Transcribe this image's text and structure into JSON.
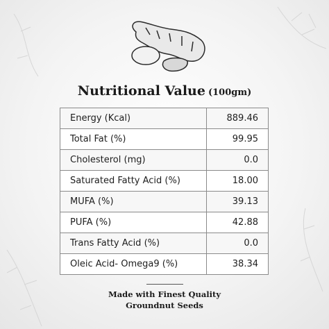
{
  "header": {
    "title": "Nutritional Value",
    "unit": "(100gm)"
  },
  "table": {
    "rows": [
      [
        "Energy (Kcal)",
        "889.46"
      ],
      [
        "Total Fat (%)",
        "99.95"
      ],
      [
        "Cholesterol (mg)",
        "0.0"
      ],
      [
        "Saturated Fatty Acid (%)",
        "18.00"
      ],
      [
        "MUFA (%)",
        "39.13"
      ],
      [
        "PUFA (%)",
        "42.88"
      ],
      [
        "Trans Fatty Acid (%)",
        "0.0"
      ],
      [
        "Oleic Acid- Omega9 (%)",
        "38.34"
      ]
    ]
  },
  "footer": {
    "line1": "Made with Finest Quality",
    "line2": "Groundnut Seeds"
  }
}
